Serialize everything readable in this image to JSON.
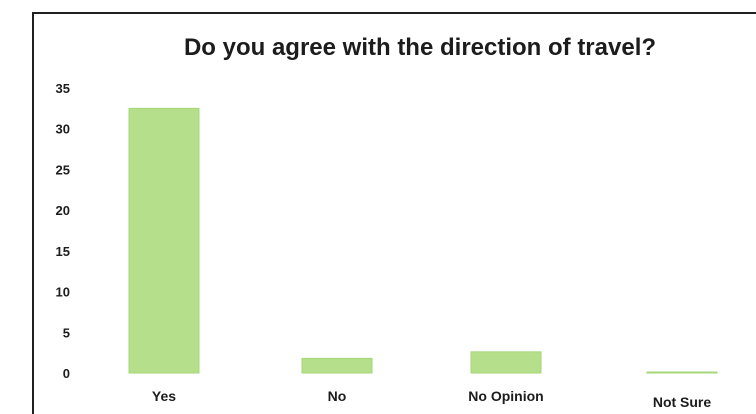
{
  "chart_data": {
    "type": "bar",
    "title": "Do you agree with the direction of travel?",
    "categories": [
      "Yes",
      "No",
      "No Opinion",
      "Not Sure"
    ],
    "values": [
      32.5,
      1.8,
      2.6,
      0.1
    ],
    "ylim": [
      0,
      35
    ],
    "yticks": [
      0,
      5,
      10,
      15,
      20,
      25,
      30,
      35
    ],
    "xlabel": "",
    "ylabel": "",
    "grid": false,
    "legend": "none",
    "bar_color": "#b5df8a",
    "bar_edge_color": "#a6d77a"
  }
}
